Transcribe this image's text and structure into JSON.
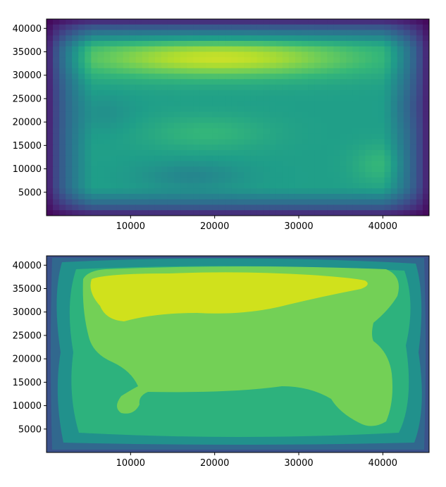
{
  "chart_data": [
    {
      "type": "heatmap",
      "style": "pcolormesh",
      "colormap": "viridis",
      "title": "",
      "xlabel": "",
      "ylabel": "",
      "xlim": [
        0,
        45500
      ],
      "ylim": [
        0,
        42000
      ],
      "xticks": [
        10000,
        20000,
        30000,
        40000
      ],
      "xtick_labels": [
        "10000",
        "20000",
        "30000",
        "40000"
      ],
      "yticks": [
        5000,
        10000,
        15000,
        20000,
        25000,
        30000,
        35000,
        40000
      ],
      "ytick_labels": [
        "5000",
        "10000",
        "15000",
        "20000",
        "25000",
        "30000",
        "35000",
        "40000"
      ],
      "grid": false,
      "legend": "none",
      "field_description": "smooth 2D field, low (dark) at borders, high (yellow) band near y=33000-37000, secondary highs near (20000,17000) and (40000,11000), lower trough near (18000,8000)"
    },
    {
      "type": "heatmap",
      "style": "contourf",
      "colormap": "viridis",
      "title": "",
      "xlabel": "",
      "ylabel": "",
      "xlim": [
        0,
        45500
      ],
      "ylim": [
        0,
        42000
      ],
      "xticks": [
        10000,
        20000,
        30000,
        40000
      ],
      "xtick_labels": [
        "10000",
        "20000",
        "30000",
        "40000"
      ],
      "yticks": [
        5000,
        10000,
        15000,
        20000,
        25000,
        30000,
        35000,
        40000
      ],
      "ytick_labels": [
        "5000",
        "10000",
        "15000",
        "20000",
        "25000",
        "30000",
        "35000",
        "40000"
      ],
      "grid": false,
      "legend": "none",
      "levels": 6,
      "level_colors": [
        "#3b528b",
        "#31688e",
        "#21918c",
        "#2db27d",
        "#73d056",
        "#d0e11c"
      ]
    }
  ]
}
